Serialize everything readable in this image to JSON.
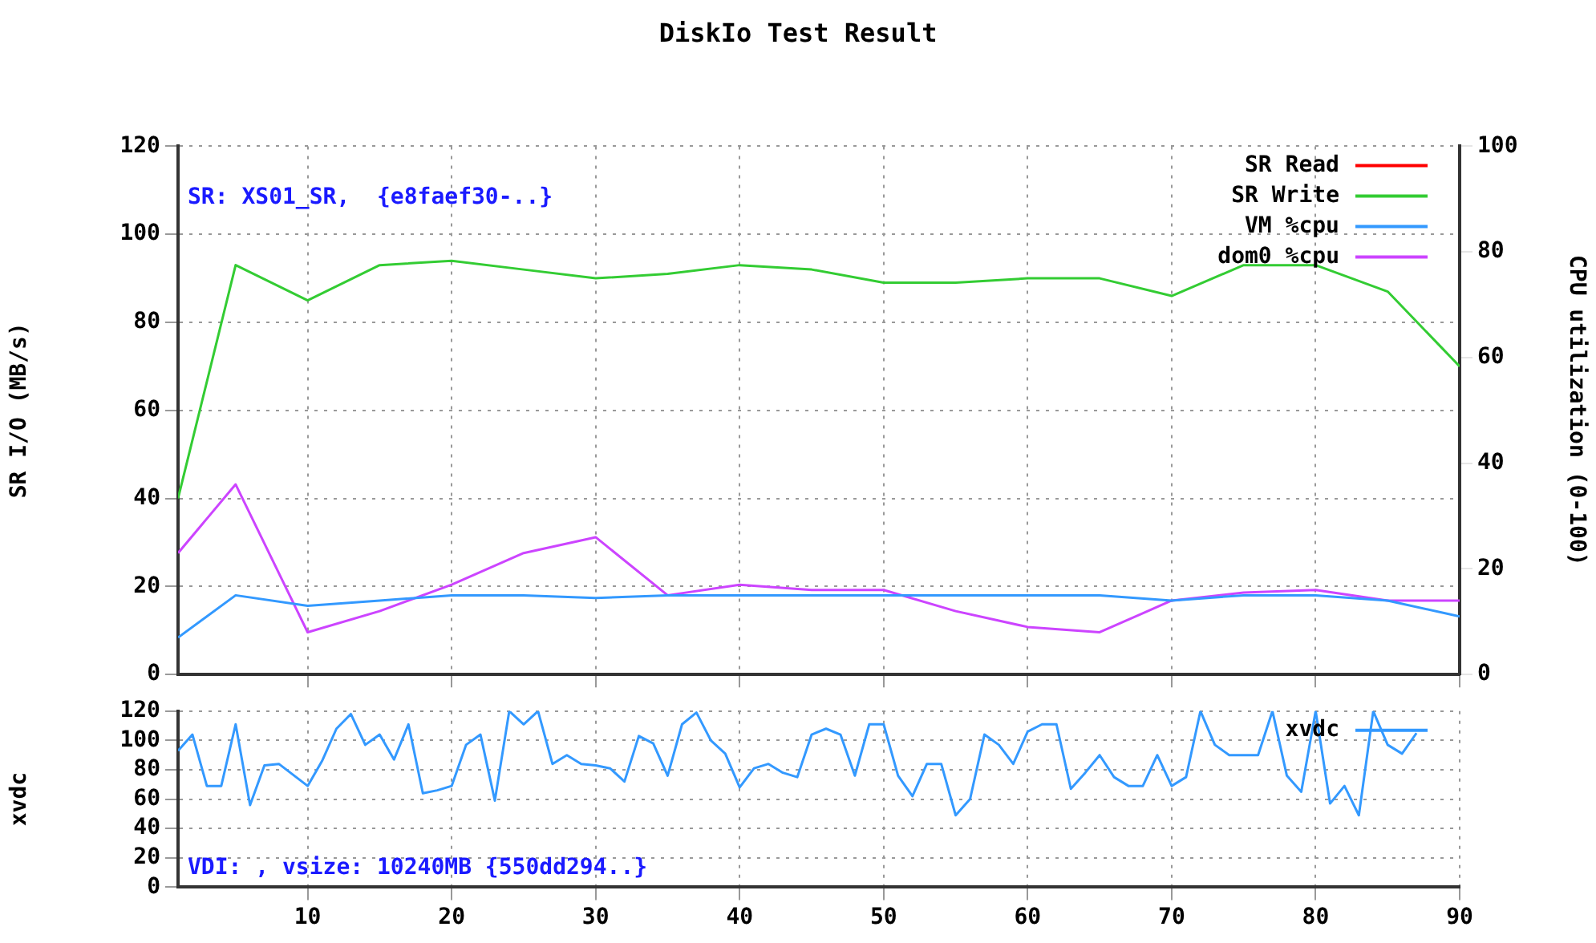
{
  "chart_data": [
    {
      "type": "line",
      "title": "DiskIo Test Result",
      "ylabel": "SR I/O (MB/s)",
      "y2label": "CPU utilization (0-100)",
      "annotations": [
        "SR: XS01_SR,  {e8faef30-..}"
      ],
      "x": [
        1,
        5,
        10,
        15,
        20,
        25,
        30,
        35,
        40,
        45,
        50,
        55,
        60,
        65,
        70,
        75,
        80,
        85,
        90
      ],
      "series": [
        {
          "name": "SR Read",
          "color": "#ff0000",
          "values": [
            null,
            null,
            null,
            null,
            null,
            null,
            null,
            null,
            null,
            null,
            null,
            null,
            null,
            null,
            null,
            null,
            null,
            null,
            null
          ]
        },
        {
          "name": "SR Write",
          "color": "#33cc33",
          "values": [
            40,
            93,
            85,
            93,
            94,
            92,
            90,
            91,
            93,
            92,
            89,
            89,
            90,
            90,
            86,
            93,
            93,
            87,
            70
          ]
        },
        {
          "name": "VM %cpu",
          "color": "#3399ff",
          "axis": "y2",
          "values": [
            7,
            15,
            13,
            14,
            15,
            15,
            14.5,
            15,
            15,
            15,
            15,
            15,
            15,
            15,
            14,
            15,
            15,
            14,
            11
          ]
        },
        {
          "name": "dom0 %cpu",
          "color": "#cc44ff",
          "axis": "y2",
          "values": [
            23,
            36,
            8,
            12,
            17,
            23,
            26,
            15,
            17,
            16,
            16,
            12,
            9,
            8,
            14,
            15.5,
            16,
            14,
            14
          ]
        }
      ],
      "xlim": [
        1,
        90
      ],
      "xticks": [
        10,
        20,
        30,
        40,
        50,
        60,
        70,
        80,
        90
      ],
      "ylim": [
        0,
        120
      ],
      "yticks": [
        0,
        20,
        40,
        60,
        80,
        100,
        120
      ],
      "y2lim": [
        0,
        100
      ],
      "y2ticks": [
        0,
        20,
        40,
        60,
        80,
        100
      ],
      "grid": true,
      "legend": "top right",
      "tick_labels": "y"
    },
    {
      "type": "line",
      "ylabel": "xvdc",
      "annotations": [
        "VDI: , vsize: 10240MB {550dd294..}"
      ],
      "x": [
        1,
        2,
        3,
        4,
        5,
        6,
        7,
        8,
        10,
        11,
        12,
        13,
        14,
        15,
        16,
        17,
        18,
        19,
        20,
        21,
        22,
        23,
        24,
        25,
        26,
        27,
        28,
        29,
        30,
        31,
        32,
        33,
        34,
        35,
        36,
        37,
        38,
        39,
        40,
        41,
        42,
        43,
        44,
        45,
        46,
        47,
        48,
        49,
        50,
        51,
        52,
        53,
        54,
        55,
        56,
        57,
        58,
        59,
        60,
        61,
        62,
        63,
        64,
        65,
        66,
        67,
        68,
        69,
        70,
        71,
        72,
        73,
        74,
        75,
        76,
        77,
        78,
        79,
        80,
        81,
        82,
        83,
        84,
        85,
        86,
        87
      ],
      "series": [
        {
          "name": "xvdc",
          "color": "#3399ff",
          "values": [
            93,
            104,
            69,
            69,
            111,
            56,
            83,
            84,
            69,
            86,
            108,
            118,
            97,
            104,
            87,
            111,
            64,
            66,
            69,
            97,
            104,
            59,
            120,
            111,
            120,
            84,
            90,
            84,
            83,
            81,
            72,
            103,
            98,
            76,
            111,
            119,
            100,
            91,
            68,
            81,
            84,
            78,
            75,
            104,
            108,
            104,
            76,
            111,
            111,
            76,
            62,
            84,
            84,
            49,
            60,
            104,
            97,
            84,
            106,
            111,
            111,
            67,
            78,
            90,
            75,
            69,
            69,
            90,
            69,
            75,
            120,
            97,
            90,
            90,
            90,
            120,
            76,
            65,
            120,
            57,
            69,
            49,
            120,
            97,
            91,
            105
          ]
        }
      ],
      "xlim": [
        1,
        90
      ],
      "xticks": [
        10,
        20,
        30,
        40,
        50,
        60,
        70,
        80,
        90
      ],
      "ylim": [
        0,
        120
      ],
      "yticks": [
        0,
        20,
        40,
        60,
        80,
        100,
        120
      ],
      "grid": true,
      "legend": "top right"
    }
  ]
}
